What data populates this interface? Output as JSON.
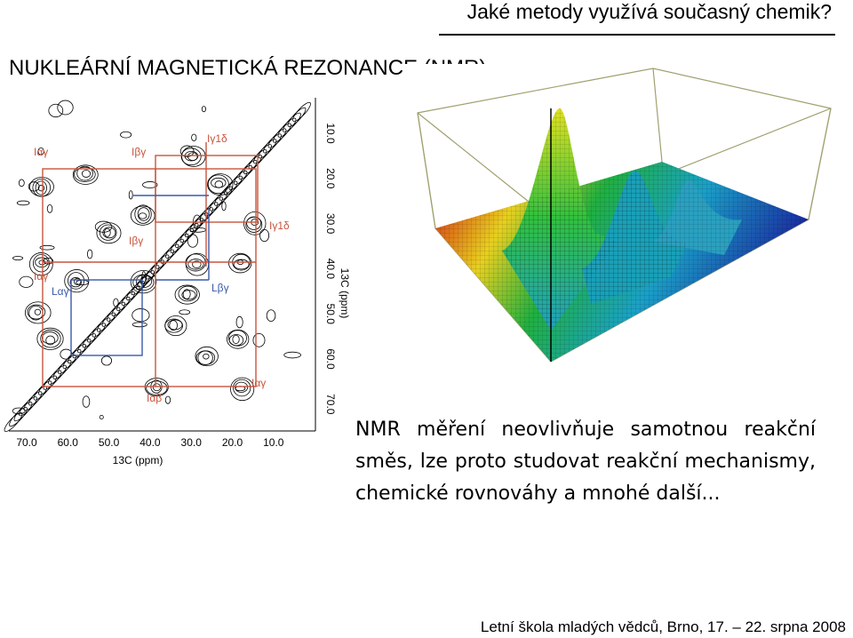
{
  "header": {
    "title": "Jaké metody využívá současný chemik?"
  },
  "slide": {
    "title": "NUKLEÁRNÍ MAGNETICKÁ REZONANCE (NMR)",
    "body": [
      "NMR měření neovlivňuje samotnou reakční",
      "směs, lze proto studovat reakční mechanismy,",
      "chemické rovnováhy a mnohé další..."
    ]
  },
  "spectrum_2d": {
    "x_ticks": [
      "70.0",
      "60.0",
      "50.0",
      "40.0",
      "30.0",
      "20.0",
      "10.0"
    ],
    "y_ticks": [
      "10.0",
      "20.0",
      "30.0",
      "40.0",
      "50.0",
      "60.0",
      "70.0"
    ],
    "x_axis_label": "13C (ppm)",
    "y_axis_label": "13C (ppm)",
    "peak_labels": [
      "Iαγ",
      "Iβγ",
      "Iγ1δ",
      "Iγ1δ",
      "Iαγ",
      "Lαγ",
      "Iβγ",
      "Lβγ",
      "Iαγ",
      "Iαβ"
    ]
  },
  "footer": {
    "text": "Letní škola mladých vědců, Brno, 17. – 22. srpna 2008"
  }
}
